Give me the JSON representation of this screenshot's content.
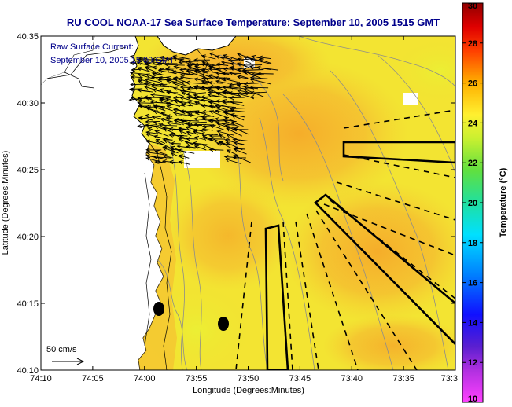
{
  "chart_data": {
    "type": "heatmap",
    "title": "RU COOL  NOAA-17  Sea Surface Temperature:  September 10, 2005 1515 GMT",
    "annotation": [
      "Raw Surface Current:",
      "September 10, 2005 15:00 GMT"
    ],
    "xlabel": "Longitude (Degrees:Minutes)",
    "ylabel": "Latitude (Degrees:Minutes)",
    "x_ticks": [
      "74:10",
      "74:05",
      "74:00",
      "73:55",
      "73:50",
      "73:45",
      "73:40",
      "73:35",
      "73:3"
    ],
    "y_ticks": [
      "40:35",
      "40:30",
      "40:25",
      "40:20",
      "40:15",
      "40:10"
    ],
    "xlim": [
      -74.1667,
      -73.5
    ],
    "ylim": [
      40.1667,
      40.5833
    ],
    "colorbar": {
      "label": "Temperature (°C)",
      "range": [
        10,
        30
      ],
      "ticks": [
        "10",
        "12",
        "14",
        "16",
        "18",
        "20",
        "22",
        "24",
        "26",
        "28",
        "30"
      ]
    },
    "scale_arrow_label": "50 cm/s",
    "sst_range_shown_c": [
      22,
      24
    ]
  },
  "colors": {
    "title": "#00008b",
    "water_warm": "#f5b830",
    "water_cool": "#f1ea30",
    "land": "#ffffff",
    "masked": "#ffffff"
  }
}
